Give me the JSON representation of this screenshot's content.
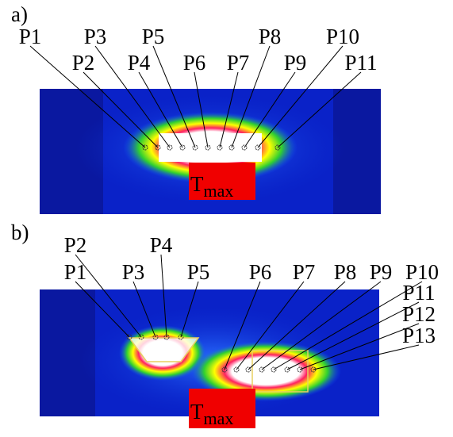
{
  "panel_a": {
    "label": "a)",
    "points": [
      "P1",
      "P2",
      "P3",
      "P4",
      "P5",
      "P6",
      "P7",
      "P8",
      "P9",
      "P10",
      "P11"
    ],
    "tmax": {
      "main": "T",
      "sub": "max"
    }
  },
  "panel_b": {
    "label": "b)",
    "points": [
      "P1",
      "P2",
      "P3",
      "P4",
      "P5",
      "P6",
      "P7",
      "P8",
      "P9",
      "P10",
      "P11",
      "P12",
      "P13"
    ],
    "tmax": {
      "main": "T",
      "sub": "max"
    }
  }
}
